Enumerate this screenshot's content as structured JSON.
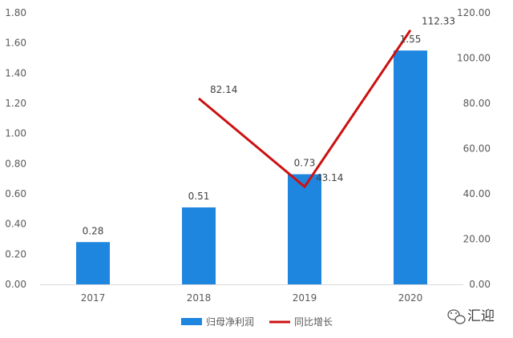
{
  "chart_data": {
    "type": "bar",
    "categories": [
      "2017",
      "2018",
      "2019",
      "2020"
    ],
    "series": [
      {
        "name": "归母净利润",
        "type": "bar",
        "axis": "left",
        "color": "#1f86e0",
        "values": [
          0.28,
          0.51,
          0.73,
          1.55
        ],
        "labels": [
          "0.28",
          "0.51",
          "0.73",
          "1.55"
        ]
      },
      {
        "name": "同比增长",
        "type": "line",
        "axis": "right",
        "color": "#cc1111",
        "values": [
          null,
          82.14,
          43.14,
          112.33
        ],
        "labels": [
          "",
          "82.14",
          "43.14",
          "112.33"
        ]
      }
    ],
    "ylim_left": [
      0,
      1.8
    ],
    "yticks_left": [
      "0.00",
      "0.20",
      "0.40",
      "0.60",
      "0.80",
      "1.00",
      "1.20",
      "1.40",
      "1.60",
      "1.80"
    ],
    "ylim_right": [
      0,
      120
    ],
    "yticks_right": [
      "0.00",
      "20.00",
      "40.00",
      "60.00",
      "80.00",
      "100.00",
      "120.00"
    ],
    "title": "",
    "xlabel": "",
    "ylabel": "",
    "grid": false,
    "legend_position": "bottom"
  },
  "watermark": {
    "text": "汇迎",
    "icon": "wechat-icon"
  }
}
